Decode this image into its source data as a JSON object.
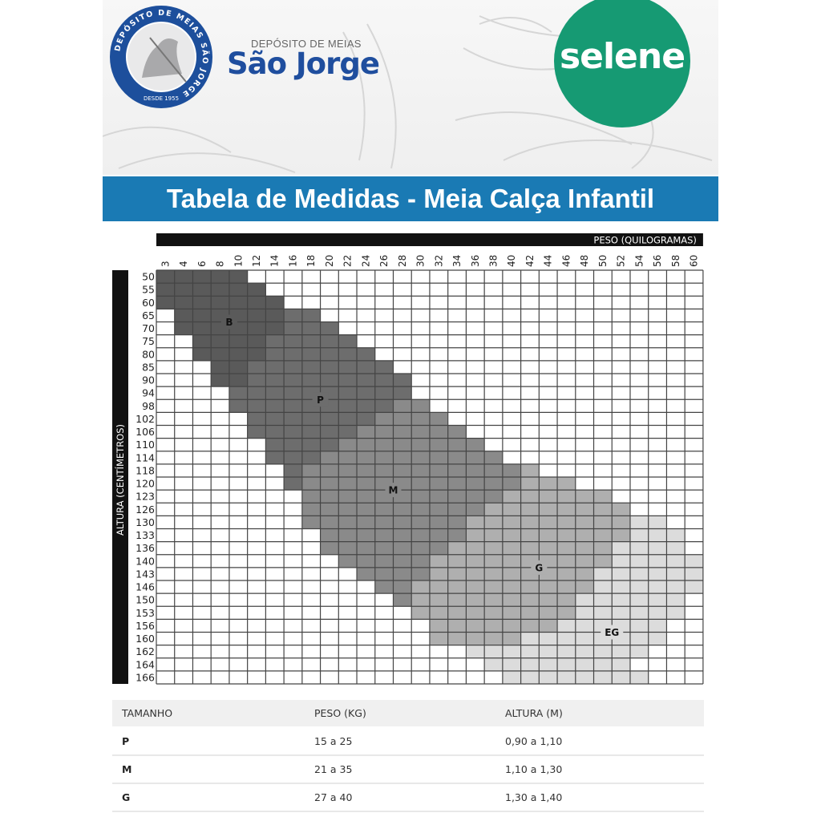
{
  "header": {
    "seal_text": "DEPÓSITO DE MEIAS SÃO JORGE",
    "seal_since": "DESDE 1955",
    "brand_small": "DEPÓSITO DE MEIAS",
    "brand_big": "São Jorge",
    "partner_logo": "selene",
    "colors": {
      "seal": "#1d4f9c",
      "brand": "#1f4e9e",
      "partner": "#169a73",
      "title_bar": "#1a7ab4"
    }
  },
  "title": "Tabela de Medidas - Meia Calça Infantil",
  "chart_data": {
    "type": "heatmap",
    "xlabel": "PESO (QUILOGRAMAS)",
    "ylabel": "ALTURA (CENTÍMETROS)",
    "x_ticks": [
      3,
      4,
      6,
      8,
      10,
      12,
      14,
      16,
      18,
      20,
      22,
      24,
      26,
      28,
      30,
      32,
      34,
      36,
      38,
      40,
      42,
      44,
      46,
      48,
      50,
      52,
      54,
      56,
      58,
      60
    ],
    "y_ticks": [
      50,
      55,
      60,
      65,
      70,
      75,
      80,
      85,
      90,
      94,
      98,
      102,
      106,
      110,
      114,
      118,
      120,
      123,
      126,
      130,
      133,
      136,
      140,
      143,
      146,
      150,
      153,
      156,
      160,
      162,
      164,
      166
    ],
    "grid": true,
    "sizes": [
      {
        "label": "EG",
        "color": "#dcdcdc",
        "cells": [
          [
            130,
            54,
            56
          ],
          [
            133,
            54,
            58
          ],
          [
            136,
            52,
            58
          ],
          [
            140,
            52,
            60
          ],
          [
            143,
            50,
            60
          ],
          [
            146,
            50,
            60
          ],
          [
            150,
            48,
            58
          ],
          [
            153,
            48,
            58
          ],
          [
            156,
            46,
            56
          ],
          [
            160,
            42,
            56
          ],
          [
            162,
            36,
            54
          ],
          [
            164,
            38,
            52
          ],
          [
            166,
            40,
            54
          ]
        ]
      },
      {
        "label": "G",
        "color": "#afafaf",
        "cells": [
          [
            118,
            42,
            42
          ],
          [
            120,
            42,
            46
          ],
          [
            123,
            40,
            50
          ],
          [
            126,
            38,
            52
          ],
          [
            130,
            36,
            52
          ],
          [
            133,
            36,
            52
          ],
          [
            136,
            34,
            50
          ],
          [
            140,
            32,
            50
          ],
          [
            143,
            32,
            48
          ],
          [
            146,
            30,
            48
          ],
          [
            150,
            30,
            46
          ],
          [
            153,
            30,
            46
          ],
          [
            156,
            32,
            44
          ],
          [
            160,
            32,
            40
          ]
        ]
      },
      {
        "label": "M",
        "color": "#8a8a8a",
        "cells": [
          [
            98,
            28,
            30
          ],
          [
            102,
            26,
            32
          ],
          [
            106,
            24,
            34
          ],
          [
            110,
            22,
            36
          ],
          [
            114,
            20,
            38
          ],
          [
            118,
            18,
            40
          ],
          [
            120,
            18,
            40
          ],
          [
            123,
            18,
            38
          ],
          [
            126,
            18,
            36
          ],
          [
            130,
            18,
            34
          ],
          [
            133,
            20,
            34
          ],
          [
            136,
            20,
            32
          ],
          [
            140,
            22,
            30
          ],
          [
            143,
            24,
            30
          ],
          [
            146,
            26,
            28
          ],
          [
            150,
            28,
            28
          ]
        ]
      },
      {
        "label": "P",
        "color": "#6d6d6d",
        "cells": [
          [
            65,
            16,
            18
          ],
          [
            70,
            16,
            20
          ],
          [
            75,
            14,
            22
          ],
          [
            80,
            14,
            24
          ],
          [
            85,
            12,
            26
          ],
          [
            90,
            12,
            28
          ],
          [
            94,
            10,
            28
          ],
          [
            98,
            10,
            26
          ],
          [
            102,
            12,
            24
          ],
          [
            106,
            12,
            22
          ],
          [
            110,
            14,
            20
          ],
          [
            114,
            14,
            18
          ],
          [
            118,
            16,
            16
          ],
          [
            120,
            16,
            16
          ]
        ]
      },
      {
        "label": "B",
        "color": "#5a5a5a",
        "cells": [
          [
            50,
            3,
            10
          ],
          [
            55,
            3,
            12
          ],
          [
            60,
            3,
            14
          ],
          [
            65,
            4,
            14
          ],
          [
            70,
            4,
            14
          ],
          [
            75,
            6,
            12
          ],
          [
            80,
            6,
            12
          ],
          [
            85,
            8,
            10
          ],
          [
            90,
            8,
            10
          ]
        ]
      }
    ]
  },
  "size_table": {
    "headers": [
      "TAMANHO",
      "PESO (KG)",
      "ALTURA (M)"
    ],
    "rows": [
      [
        "P",
        "15 a 25",
        "0,90 a 1,10"
      ],
      [
        "M",
        "21 a 35",
        "1,10 a 1,30"
      ],
      [
        "G",
        "27 a 40",
        "1,30 a 1,40"
      ]
    ]
  }
}
